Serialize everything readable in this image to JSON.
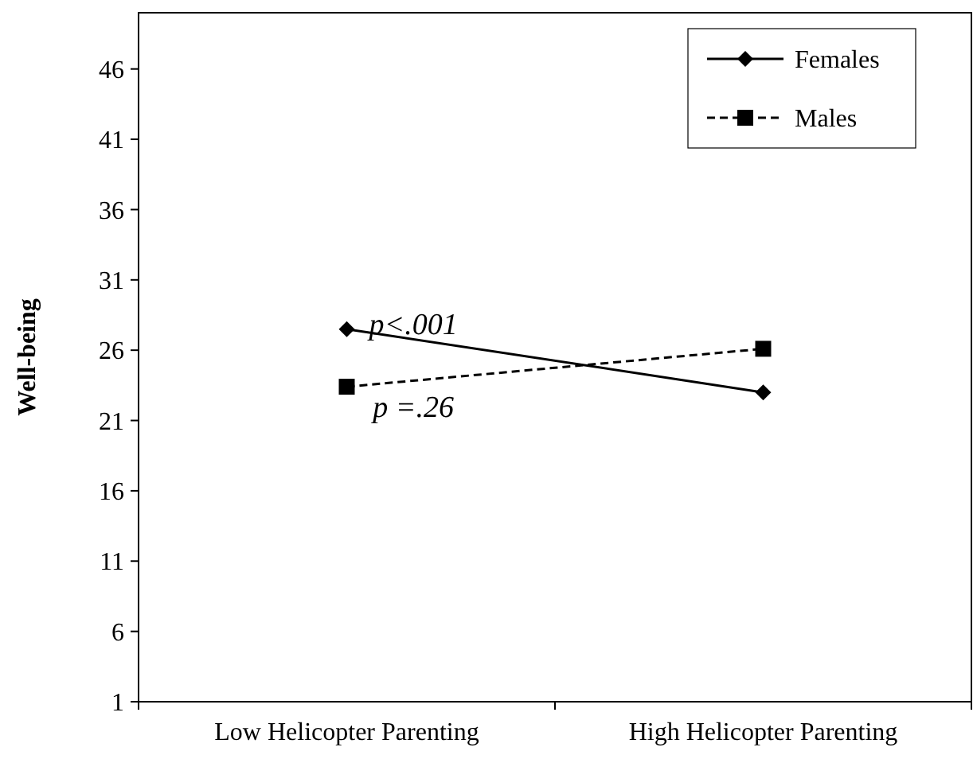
{
  "chart_data": {
    "type": "line",
    "ylabel": "Well-being",
    "categories": [
      "Low Helicopter Parenting",
      "High Helicopter Parenting"
    ],
    "series": [
      {
        "name": "Females",
        "color": "#000000",
        "values": [
          27.5,
          23.0
        ],
        "marker": "diamond",
        "line_style": "solid"
      },
      {
        "name": "Males",
        "color": "#000000",
        "values": [
          23.4,
          26.1
        ],
        "marker": "square",
        "line_style": "dashed"
      }
    ],
    "ylim": [
      1,
      50
    ],
    "yticks": [
      1,
      6,
      11,
      16,
      21,
      26,
      31,
      36,
      41,
      46
    ],
    "grid": false,
    "legend": "top right",
    "annotations": [
      "p<.001",
      "p =.26"
    ]
  }
}
